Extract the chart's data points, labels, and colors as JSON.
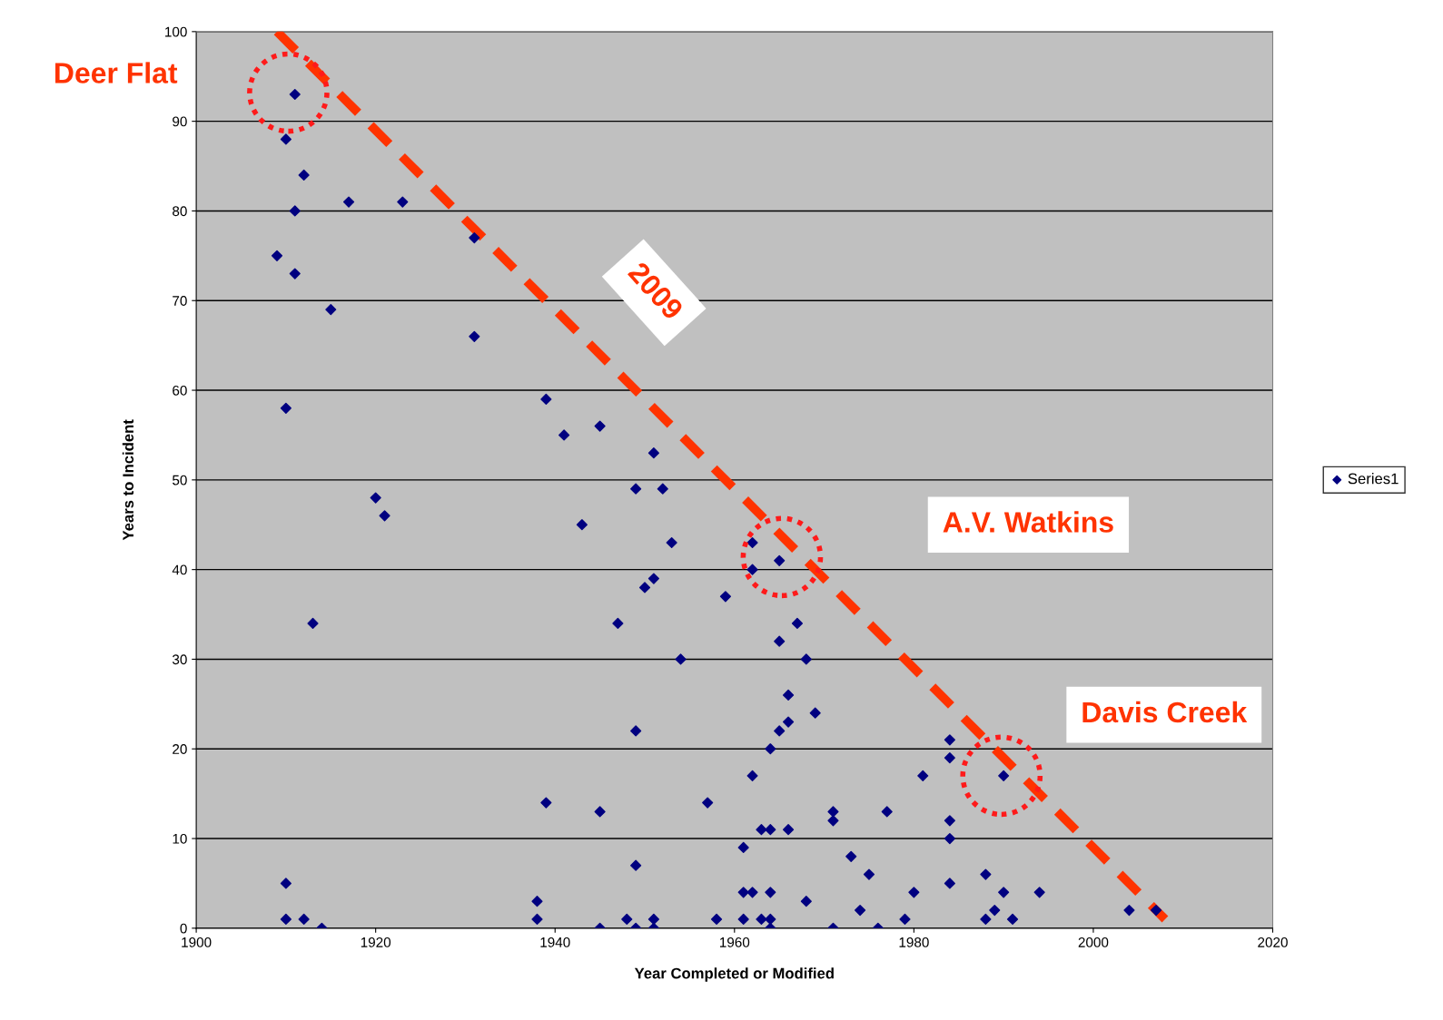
{
  "chart_data": {
    "type": "scatter",
    "xlabel": "Year Completed or Modified",
    "ylabel": "Years to Incident",
    "xlim": [
      1900,
      2020
    ],
    "xticks": [
      1900,
      1920,
      1940,
      1960,
      1980,
      2000,
      2020
    ],
    "ylim": [
      0,
      100
    ],
    "yticks": [
      0,
      10,
      20,
      30,
      40,
      50,
      60,
      70,
      80,
      90,
      100
    ],
    "grid": "y",
    "legend": "right",
    "marker": "diamond",
    "series": [
      {
        "name": "Series1",
        "color": "#000080",
        "x": [
          1911,
          1910,
          1912,
          1911,
          1917,
          1923,
          1909,
          1911,
          1915,
          1931,
          1931,
          1910,
          1920,
          1921,
          1913,
          1910,
          1910,
          1912,
          1914,
          1939,
          1941,
          1945,
          1943,
          1951,
          1949,
          1952,
          1953,
          1951,
          1950,
          1947,
          1954,
          1949,
          1939,
          1945,
          1949,
          1938,
          1938,
          1945,
          1948,
          1949,
          1951,
          1951,
          1959,
          1957,
          1958,
          1962,
          1962,
          1965,
          1967,
          1965,
          1968,
          1966,
          1966,
          1965,
          1969,
          1964,
          1962,
          1961,
          1963,
          1964,
          1966,
          1961,
          1962,
          1964,
          1961,
          1963,
          1964,
          1964,
          1968,
          1971,
          1971,
          1973,
          1974,
          1975,
          1977,
          1976,
          1971,
          1979,
          1980,
          1981,
          1984,
          1984,
          1984,
          1984,
          1984,
          1990,
          1988,
          1990,
          1989,
          1988,
          1991,
          1994,
          2004,
          2007
        ],
        "values": [
          93,
          88,
          84,
          80,
          81,
          81,
          75,
          73,
          69,
          77,
          66,
          58,
          48,
          46,
          34,
          5,
          1,
          1,
          0,
          59,
          55,
          56,
          45,
          53,
          49,
          49,
          43,
          39,
          38,
          34,
          30,
          22,
          14,
          13,
          7,
          3,
          1,
          0,
          1,
          0,
          1,
          0,
          37,
          14,
          1,
          43,
          40,
          41,
          34,
          32,
          30,
          26,
          23,
          22,
          24,
          20,
          17,
          9,
          11,
          11,
          11,
          4,
          4,
          4,
          1,
          1,
          1,
          0,
          3,
          13,
          12,
          8,
          2,
          6,
          13,
          0,
          0,
          1,
          4,
          17,
          21,
          19,
          12,
          10,
          5,
          17,
          6,
          4,
          2,
          1,
          1,
          4,
          2,
          2
        ]
      },
      {
        "type": "line",
        "color": "#ff3300",
        "line_style": "dashed",
        "marker": "none",
        "x": [
          1909,
          2008
        ],
        "values": [
          100,
          1
        ]
      }
    ],
    "annotations": [
      "Deer Flat",
      {
        "text": "2009",
        "x": 1944,
        "y": 65
      },
      "A.V. Watkins",
      "Davis Creek"
    ]
  }
}
